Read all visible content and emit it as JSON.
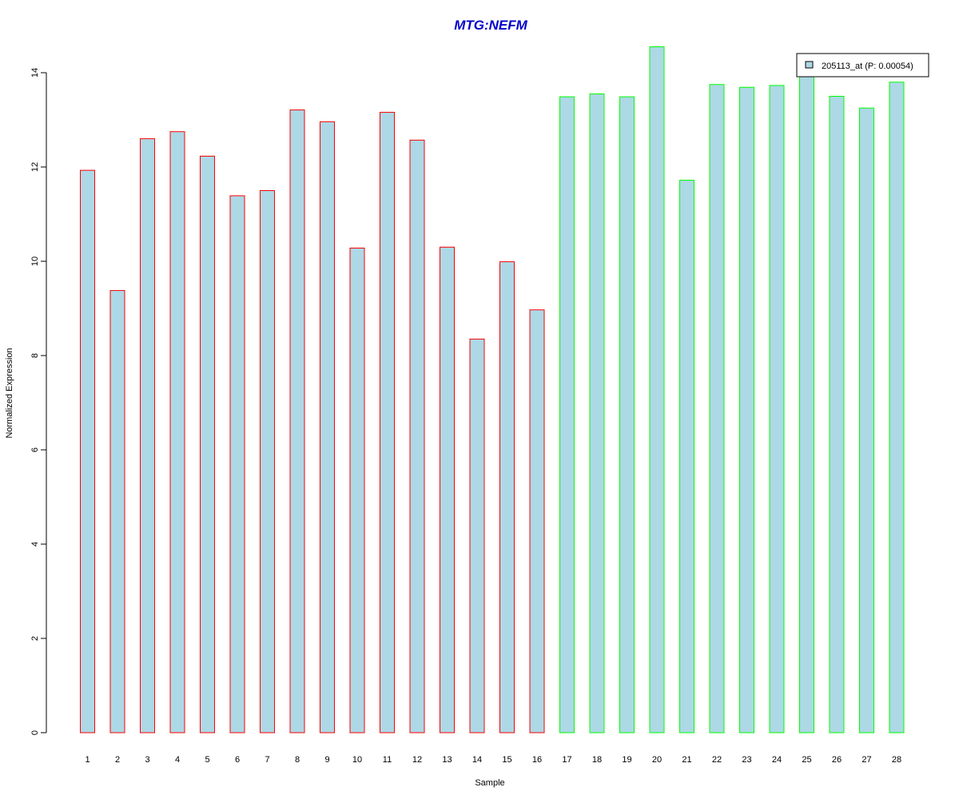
{
  "chart_data": {
    "type": "bar",
    "title": "MTG:NEFM",
    "xlabel": "Sample",
    "ylabel": "Normalized Expression",
    "categories": [
      "1",
      "2",
      "3",
      "4",
      "5",
      "6",
      "7",
      "8",
      "9",
      "10",
      "11",
      "12",
      "13",
      "14",
      "15",
      "16",
      "17",
      "18",
      "19",
      "20",
      "21",
      "22",
      "23",
      "24",
      "25",
      "26",
      "27",
      "28"
    ],
    "series": [
      {
        "name": "205113_at (P: 0.00054)",
        "values": [
          11.93,
          9.38,
          12.6,
          12.75,
          12.23,
          11.39,
          11.5,
          13.21,
          12.96,
          10.28,
          13.16,
          12.57,
          10.3,
          8.35,
          9.99,
          8.97,
          13.49,
          13.55,
          13.49,
          14.55,
          11.72,
          13.75,
          13.69,
          13.73,
          13.99,
          13.5,
          13.25,
          13.8
        ]
      }
    ],
    "ylim": [
      0,
      14.55
    ],
    "yticks": [
      "0",
      "2",
      "4",
      "6",
      "8",
      "10",
      "12",
      "14"
    ],
    "grid": false,
    "legend_position": "top-right",
    "colors": {
      "title": "#0000cc",
      "bar_fill": "#add8e6",
      "group1_border": "#ff0000",
      "group2_border": "#00ff00",
      "axis": "#000000"
    },
    "group_split_after": 16
  }
}
